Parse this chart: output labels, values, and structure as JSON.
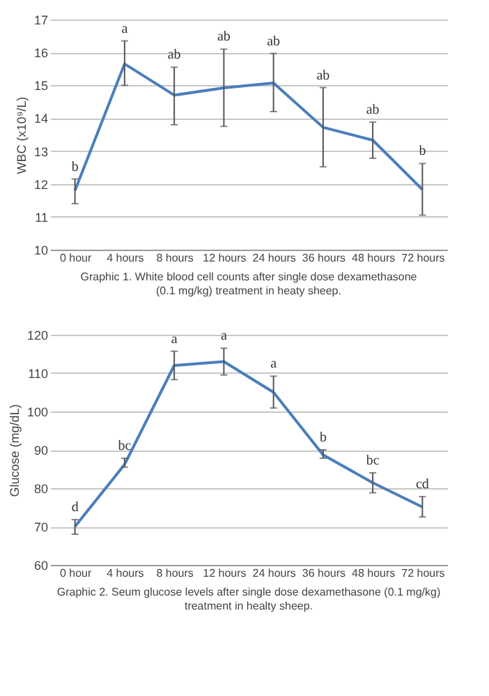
{
  "chart_data": [
    {
      "type": "line",
      "title": "Graphic 1. White blood cell counts after single dose dexamethasone\n(0.1 mg/kg) treatment in heaty sheep.",
      "ylabel": "WBC (x10⁹/L)",
      "categories": [
        "0 hour",
        "4 hours",
        "8 hours",
        "12 hours",
        "24 hours",
        "36 hours",
        "48 hours",
        "72 hours"
      ],
      "series": [
        {
          "color": "#4a7ebb",
          "values": [
            11.8,
            15.65,
            14.7,
            14.92,
            15.07,
            13.72,
            13.33,
            11.83
          ],
          "errors": [
            [
              11.4,
              12.15
            ],
            [
              15.0,
              16.35
            ],
            [
              13.8,
              15.55
            ],
            [
              13.75,
              16.1
            ],
            [
              14.2,
              15.97
            ],
            [
              12.52,
              14.93
            ],
            [
              12.78,
              13.88
            ],
            [
              11.05,
              12.62
            ]
          ]
        }
      ],
      "ylim": [
        10,
        17
      ],
      "yticks": [
        10,
        11,
        12,
        13,
        14,
        15,
        16,
        17
      ],
      "grid": "y",
      "marker": "none",
      "line_style": "solid",
      "annotations": [
        {
          "text": "b",
          "x": "0 hour",
          "y": 12.15
        },
        {
          "text": "a",
          "x": "4 hours",
          "y": 16.35
        },
        {
          "text": "ab",
          "x": "8 hours",
          "y": 15.55
        },
        {
          "text": "ab",
          "x": "12 hours",
          "y": 16.1
        },
        {
          "text": "ab",
          "x": "24 hours",
          "y": 15.97
        },
        {
          "text": "ab",
          "x": "36 hours",
          "y": 14.93
        },
        {
          "text": "ab",
          "x": "48 hours",
          "y": 13.88
        },
        {
          "text": "b",
          "x": "72 hours",
          "y": 12.62
        }
      ]
    },
    {
      "type": "line",
      "title": "Graphic 2. Seum glucose levels after single dose dexamethasone (0.1 mg/kg)\ntreatment in healty sheep.",
      "ylabel": "Glucose (mg/dL)",
      "categories": [
        "0 hour",
        "4 hours",
        "8 hours",
        "12 hours",
        "24 hours",
        "36 hours",
        "48 hours",
        "72 hours"
      ],
      "series": [
        {
          "color": "#4a7ebb",
          "values": [
            70,
            86.2,
            112,
            113,
            105,
            88.7,
            81.4,
            75.1
          ],
          "errors": [
            [
              68,
              71.8
            ],
            [
              85.5,
              87.8
            ],
            [
              108.3,
              115.7
            ],
            [
              109.5,
              116.5
            ],
            [
              100.9,
              109.2
            ],
            [
              87.8,
              90
            ],
            [
              78.8,
              84
            ],
            [
              72.5,
              77.8
            ]
          ]
        }
      ],
      "ylim": [
        60,
        120
      ],
      "yticks": [
        60,
        70,
        80,
        90,
        100,
        110,
        120
      ],
      "grid": "y",
      "marker": "none",
      "line_style": "solid",
      "annotations": [
        {
          "text": "d",
          "x": "0 hour",
          "y": 71.8
        },
        {
          "text": "bc",
          "x": "4 hours",
          "y": 87.8
        },
        {
          "text": "a",
          "x": "8 hours",
          "y": 115.7
        },
        {
          "text": "a",
          "x": "12 hours",
          "y": 116.5
        },
        {
          "text": "a",
          "x": "24 hours",
          "y": 109.2
        },
        {
          "text": "b",
          "x": "36 hours",
          "y": 90
        },
        {
          "text": "bc",
          "x": "48 hours",
          "y": 84
        },
        {
          "text": "cd",
          "x": "72 hours",
          "y": 77.8
        }
      ]
    }
  ]
}
